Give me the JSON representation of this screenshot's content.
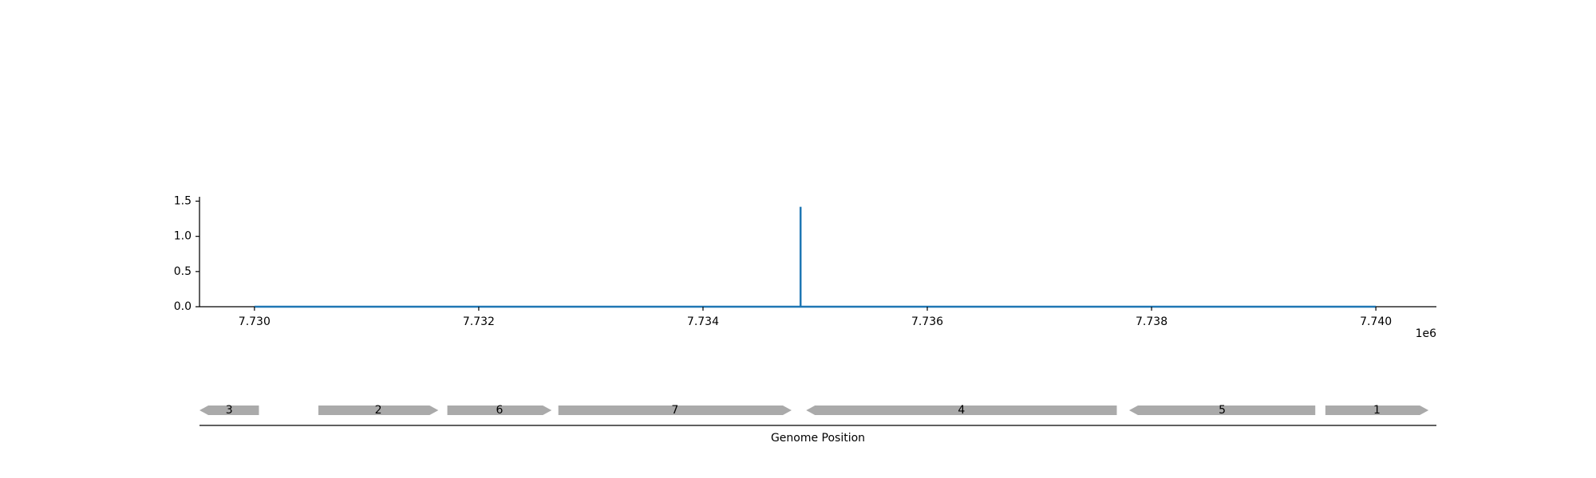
{
  "chart_data": [
    {
      "type": "line",
      "title": "",
      "xlabel": "",
      "ylabel": "",
      "x_offset_label": "1e6",
      "xlim": [
        7.72951,
        7.74054
      ],
      "ylim": [
        0,
        1.5
      ],
      "x_ticks": [
        7.73,
        7.732,
        7.734,
        7.736,
        7.738,
        7.74
      ],
      "x_tick_labels": [
        "7.730",
        "7.732",
        "7.734",
        "7.736",
        "7.738",
        "7.740"
      ],
      "y_ticks": [
        0.0,
        0.5,
        1.0,
        1.5
      ],
      "y_tick_labels": [
        "0.0",
        "0.5",
        "1.0",
        "1.5"
      ],
      "grid": false,
      "series": [
        {
          "color": "#1f77b4",
          "x": [
            7.73,
            7.73487,
            7.73487,
            7.73487,
            7.74
          ],
          "y": [
            0,
            0,
            1.42,
            0,
            0
          ]
        }
      ]
    },
    {
      "type": "gene_track",
      "xlabel": "Genome Position",
      "color": "#aaaaaa",
      "genes": [
        {
          "label": "3",
          "start": 7.72951,
          "end": 7.73004,
          "strand": "-"
        },
        {
          "label": "2",
          "start": 7.73057,
          "end": 7.73164,
          "strand": "+"
        },
        {
          "label": "6",
          "start": 7.73172,
          "end": 7.73265,
          "strand": "+"
        },
        {
          "label": "7",
          "start": 7.73271,
          "end": 7.73479,
          "strand": "+"
        },
        {
          "label": "4",
          "start": 7.73492,
          "end": 7.73769,
          "strand": "-"
        },
        {
          "label": "5",
          "start": 7.7378,
          "end": 7.73946,
          "strand": "-"
        },
        {
          "label": "1",
          "start": 7.73955,
          "end": 7.74047,
          "strand": "+"
        }
      ]
    }
  ]
}
